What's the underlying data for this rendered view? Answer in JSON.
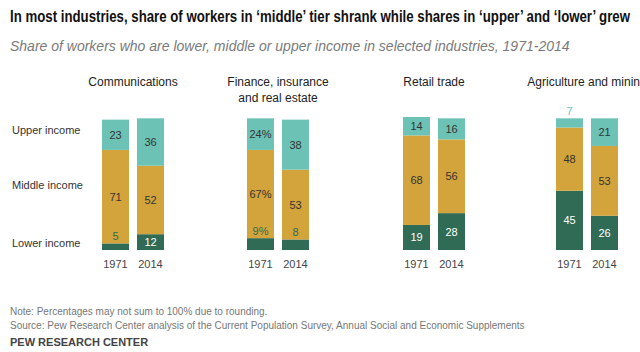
{
  "header": {
    "title": "In most industries, share of workers in ‘middle’ tier shrank while shares in ‘upper’ and ‘lower’ grew",
    "subtitle": "Share of workers who are lower, middle or upper income in selected industries, 1971-2014"
  },
  "chart_data": [
    {
      "type": "bar",
      "title": "Communications",
      "stacked": true,
      "data_labels": true,
      "tick_labels": "x",
      "categories": [
        "1971",
        "2014"
      ],
      "ylim": [
        0,
        101
      ],
      "series": [
        {
          "name": "Lower income",
          "color": "#2f6b55",
          "values": [
            5,
            12
          ]
        },
        {
          "name": "Middle income",
          "color": "#d3a43b",
          "values": [
            71,
            52
          ]
        },
        {
          "name": "Upper income",
          "color": "#6cc3b5",
          "values": [
            23,
            36
          ]
        }
      ]
    },
    {
      "type": "bar",
      "title": "Finance, insurance and real estate",
      "stacked": true,
      "data_labels": true,
      "tick_labels": "x",
      "categories": [
        "1971",
        "2014"
      ],
      "ylim": [
        0,
        101
      ],
      "series": [
        {
          "color": "#2f6b55",
          "values": [
            9,
            8
          ],
          "value_labels": [
            "9%",
            "8"
          ]
        },
        {
          "color": "#d3a43b",
          "values": [
            67,
            53
          ],
          "value_labels": [
            "67%",
            "53"
          ]
        },
        {
          "color": "#6cc3b5",
          "values": [
            24,
            38
          ],
          "value_labels": [
            "24%",
            "38"
          ]
        }
      ]
    },
    {
      "type": "bar",
      "title": "Retail trade",
      "stacked": true,
      "data_labels": true,
      "tick_labels": "x",
      "categories": [
        "1971",
        "2014"
      ],
      "ylim": [
        0,
        101
      ],
      "series": [
        {
          "color": "#2f6b55",
          "values": [
            19,
            28
          ]
        },
        {
          "color": "#d3a43b",
          "values": [
            68,
            56
          ]
        },
        {
          "color": "#6cc3b5",
          "values": [
            14,
            16
          ]
        }
      ]
    },
    {
      "type": "bar",
      "title": "Agriculture and mining",
      "stacked": true,
      "data_labels": true,
      "tick_labels": "x",
      "categories": [
        "1971",
        "2014"
      ],
      "ylim": [
        0,
        101
      ],
      "series": [
        {
          "color": "#2f6b55",
          "values": [
            45,
            26
          ]
        },
        {
          "color": "#d3a43b",
          "values": [
            48,
            53
          ]
        },
        {
          "color": "#6cc3b5",
          "values": [
            7,
            21
          ]
        }
      ]
    }
  ],
  "footer": {
    "note": "Note: Percentages may not sum to 100% due to rounding.",
    "source": "Source: Pew Research Center analysis of the Current Population Survey, Annual Social and Economic Supplements",
    "credit": "PEW RESEARCH CENTER"
  }
}
